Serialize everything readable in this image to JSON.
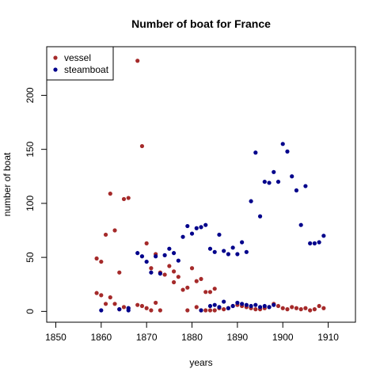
{
  "chart_data": {
    "type": "scatter",
    "title": "Number of boat for France",
    "xlabel": "years",
    "ylabel": "number of boat",
    "xlim": [
      1848,
      1916
    ],
    "ylim": [
      -10,
      245
    ],
    "xticks": [
      1850,
      1860,
      1870,
      1880,
      1890,
      1900,
      1910
    ],
    "yticks": [
      0,
      50,
      100,
      150,
      200
    ],
    "grid": false,
    "legend_position": "top-left",
    "series": [
      {
        "name": "vessel",
        "color": "#a52a2a",
        "points": [
          [
            1859,
            49
          ],
          [
            1859,
            17
          ],
          [
            1860,
            46
          ],
          [
            1860,
            15
          ],
          [
            1861,
            71
          ],
          [
            1861,
            7
          ],
          [
            1862,
            109
          ],
          [
            1862,
            13
          ],
          [
            1863,
            75
          ],
          [
            1863,
            7
          ],
          [
            1864,
            36
          ],
          [
            1864,
            2
          ],
          [
            1865,
            104
          ],
          [
            1865,
            4
          ],
          [
            1866,
            105
          ],
          [
            1866,
            3
          ],
          [
            1868,
            232
          ],
          [
            1868,
            6
          ],
          [
            1869,
            153
          ],
          [
            1869,
            5
          ],
          [
            1870,
            63
          ],
          [
            1870,
            3
          ],
          [
            1871,
            40
          ],
          [
            1871,
            1
          ],
          [
            1872,
            53
          ],
          [
            1872,
            8
          ],
          [
            1873,
            36
          ],
          [
            1873,
            1
          ],
          [
            1874,
            34
          ],
          [
            1875,
            42
          ],
          [
            1876,
            27
          ],
          [
            1876,
            37
          ],
          [
            1877,
            32
          ],
          [
            1878,
            20
          ],
          [
            1879,
            22
          ],
          [
            1879,
            1
          ],
          [
            1880,
            40
          ],
          [
            1881,
            28
          ],
          [
            1881,
            4
          ],
          [
            1882,
            30
          ],
          [
            1882,
            1
          ],
          [
            1883,
            18
          ],
          [
            1883,
            1
          ],
          [
            1884,
            18
          ],
          [
            1884,
            1
          ],
          [
            1885,
            21
          ],
          [
            1885,
            1
          ],
          [
            1886,
            3
          ],
          [
            1887,
            2
          ],
          [
            1888,
            3
          ],
          [
            1889,
            5
          ],
          [
            1890,
            6
          ],
          [
            1891,
            5
          ],
          [
            1892,
            4
          ],
          [
            1893,
            3
          ],
          [
            1894,
            2
          ],
          [
            1895,
            2
          ],
          [
            1896,
            3
          ],
          [
            1897,
            4
          ],
          [
            1898,
            7
          ],
          [
            1899,
            5
          ],
          [
            1900,
            3
          ],
          [
            1901,
            2
          ],
          [
            1902,
            4
          ],
          [
            1903,
            3
          ],
          [
            1904,
            2
          ],
          [
            1905,
            3
          ],
          [
            1906,
            1
          ],
          [
            1907,
            2
          ],
          [
            1908,
            5
          ],
          [
            1909,
            3
          ]
        ]
      },
      {
        "name": "steamboat",
        "color": "#00008b",
        "points": [
          [
            1860,
            1
          ],
          [
            1864,
            2
          ],
          [
            1866,
            1
          ],
          [
            1866,
            3
          ],
          [
            1868,
            54
          ],
          [
            1869,
            51
          ],
          [
            1870,
            46
          ],
          [
            1871,
            36
          ],
          [
            1872,
            51
          ],
          [
            1873,
            35
          ],
          [
            1874,
            52
          ],
          [
            1875,
            58
          ],
          [
            1876,
            54
          ],
          [
            1877,
            47
          ],
          [
            1878,
            69
          ],
          [
            1879,
            79
          ],
          [
            1880,
            72
          ],
          [
            1881,
            77
          ],
          [
            1882,
            78
          ],
          [
            1882,
            1
          ],
          [
            1883,
            80
          ],
          [
            1884,
            58
          ],
          [
            1884,
            5
          ],
          [
            1885,
            55
          ],
          [
            1885,
            6
          ],
          [
            1886,
            71
          ],
          [
            1886,
            4
          ],
          [
            1887,
            56
          ],
          [
            1887,
            9
          ],
          [
            1888,
            53
          ],
          [
            1888,
            3
          ],
          [
            1889,
            59
          ],
          [
            1889,
            5
          ],
          [
            1890,
            53
          ],
          [
            1890,
            8
          ],
          [
            1891,
            64
          ],
          [
            1891,
            7
          ],
          [
            1892,
            55
          ],
          [
            1892,
            6
          ],
          [
            1893,
            102
          ],
          [
            1893,
            5
          ],
          [
            1894,
            147
          ],
          [
            1894,
            6
          ],
          [
            1895,
            88
          ],
          [
            1895,
            4
          ],
          [
            1896,
            120
          ],
          [
            1896,
            5
          ],
          [
            1897,
            119
          ],
          [
            1897,
            4
          ],
          [
            1898,
            129
          ],
          [
            1898,
            6
          ],
          [
            1899,
            120
          ],
          [
            1900,
            155
          ],
          [
            1901,
            148
          ],
          [
            1902,
            125
          ],
          [
            1903,
            112
          ],
          [
            1904,
            80
          ],
          [
            1905,
            116
          ],
          [
            1906,
            63
          ],
          [
            1907,
            63
          ],
          [
            1908,
            64
          ],
          [
            1909,
            70
          ]
        ]
      }
    ]
  }
}
